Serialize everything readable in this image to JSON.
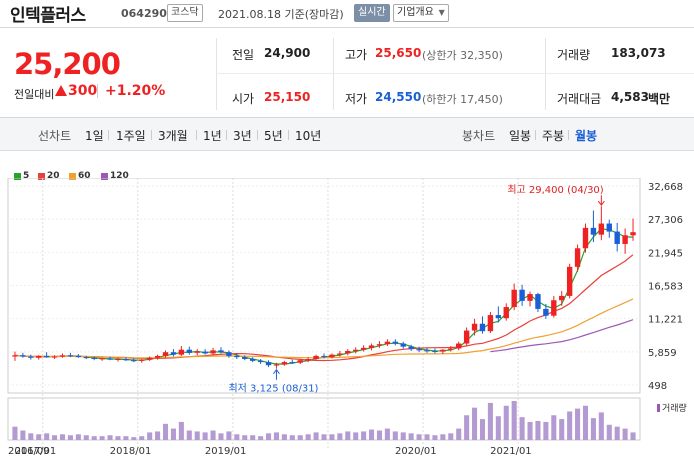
{
  "header": {
    "name": "인텍플러스",
    "code": "064290",
    "market": "코스닥",
    "date": "2021.08.18 기준(장마감)",
    "realtime": "실시간",
    "company_info": "기업개요"
  },
  "quote": {
    "price": "25,200",
    "change_label": "전일대비",
    "change_value": "300",
    "change_pct": "+1.20%",
    "prev_close_label": "전일",
    "prev_close": "24,900",
    "high_label": "고가",
    "high": "25,650",
    "upper_limit": "(상한가 32,350)",
    "volume_label": "거래량",
    "volume": "183,073",
    "open_label": "시가",
    "open": "25,150",
    "low_label": "저가",
    "low": "24,550",
    "lower_limit": "(하한가 17,450)",
    "amount_label": "거래대금",
    "amount": "4,583",
    "amount_unit": "백만"
  },
  "tabs": {
    "line_chart": "선차트",
    "periods": [
      "1일",
      "1주일",
      "3개월",
      "1년",
      "3년",
      "5년",
      "10년"
    ],
    "candle_chart": "봉차트",
    "candle_periods": [
      "일봉",
      "주봉",
      "월봉"
    ],
    "selected_candle": "월봉"
  },
  "legend": [
    {
      "label": "5",
      "color": "#2aa12a"
    },
    {
      "label": "20",
      "color": "#e8403a"
    },
    {
      "label": "60",
      "color": "#f0a030"
    },
    {
      "label": "120",
      "color": "#9b59b6"
    }
  ],
  "chart_data": {
    "type": "candlestick",
    "interval": "monthly",
    "y_ticks": [
      "32,668",
      "27,306",
      "21,945",
      "16,583",
      "11,221",
      "5,859",
      "498"
    ],
    "ylim": [
      498,
      32668
    ],
    "x_labels": [
      "2016/09",
      "2017/01",
      "2018/01",
      "2019/01",
      "2020/01",
      "2021/01"
    ],
    "max_annotation": "최고 29,400 (04/30)",
    "min_annotation": "최저 3,125 (08/31)",
    "volume_label": "거래량",
    "candles": [
      [
        5100,
        5900,
        4400,
        5300
      ],
      [
        5300,
        5700,
        4900,
        5100
      ],
      [
        5100,
        5400,
        4600,
        4900
      ],
      [
        4900,
        5300,
        4600,
        5200
      ],
      [
        5200,
        5800,
        4900,
        5000
      ],
      [
        5000,
        5300,
        4700,
        5100
      ],
      [
        5100,
        5600,
        4900,
        5300
      ],
      [
        5300,
        5700,
        5000,
        5200
      ],
      [
        5200,
        5500,
        4900,
        5000
      ],
      [
        5000,
        5200,
        4700,
        4900
      ],
      [
        4900,
        5100,
        4500,
        4700
      ],
      [
        4700,
        4900,
        4400,
        4800
      ],
      [
        4800,
        5100,
        4500,
        4600
      ],
      [
        4600,
        4900,
        4300,
        4700
      ],
      [
        4700,
        5000,
        4400,
        4500
      ],
      [
        4500,
        4800,
        4200,
        4400
      ],
      [
        4400,
        4700,
        4100,
        4600
      ],
      [
        4600,
        5100,
        4400,
        4900
      ],
      [
        4900,
        5400,
        4600,
        5200
      ],
      [
        5200,
        6100,
        4900,
        5800
      ],
      [
        5800,
        6300,
        5100,
        5400
      ],
      [
        5400,
        6800,
        5200,
        6200
      ],
      [
        6200,
        6700,
        5400,
        5700
      ],
      [
        5700,
        6300,
        5300,
        5900
      ],
      [
        5900,
        6300,
        5400,
        5600
      ],
      [
        5600,
        6500,
        5400,
        6100
      ],
      [
        6100,
        6600,
        5600,
        5800
      ],
      [
        5800,
        6100,
        4900,
        5200
      ],
      [
        5200,
        5600,
        4700,
        5000
      ],
      [
        5000,
        5300,
        4500,
        4700
      ],
      [
        4700,
        5000,
        4200,
        4400
      ],
      [
        4400,
        4700,
        3900,
        4200
      ],
      [
        4200,
        4500,
        3400,
        3700
      ],
      [
        3700,
        4100,
        3125,
        3800
      ],
      [
        3800,
        4400,
        3600,
        4200
      ],
      [
        4200,
        4600,
        3900,
        4100
      ],
      [
        4100,
        4700,
        3900,
        4500
      ],
      [
        4500,
        5000,
        4200,
        4700
      ],
      [
        4700,
        5400,
        4500,
        5200
      ],
      [
        5200,
        5600,
        4800,
        5000
      ],
      [
        5000,
        5600,
        4800,
        5400
      ],
      [
        5400,
        6000,
        5100,
        5600
      ],
      [
        5600,
        6300,
        5300,
        6000
      ],
      [
        6000,
        6600,
        5600,
        6200
      ],
      [
        6200,
        6900,
        5900,
        6500
      ],
      [
        6500,
        7200,
        6100,
        6900
      ],
      [
        6900,
        7600,
        6500,
        7100
      ],
      [
        7100,
        7900,
        6800,
        7500
      ],
      [
        7500,
        7900,
        6900,
        7200
      ],
      [
        7200,
        7500,
        6400,
        6700
      ],
      [
        6700,
        7000,
        6000,
        6300
      ],
      [
        6300,
        6700,
        5800,
        6100
      ],
      [
        6100,
        6500,
        5700,
        6000
      ],
      [
        6000,
        6400,
        5600,
        5900
      ],
      [
        5900,
        6300,
        5500,
        6200
      ],
      [
        6200,
        6800,
        5900,
        6400
      ],
      [
        6400,
        7500,
        6100,
        7200
      ],
      [
        7200,
        9800,
        6900,
        9300
      ],
      [
        9300,
        11200,
        8500,
        10400
      ],
      [
        10400,
        11600,
        8800,
        9200
      ],
      [
        9200,
        12300,
        8900,
        11800
      ],
      [
        11800,
        13200,
        10600,
        11300
      ],
      [
        11300,
        13700,
        10900,
        13100
      ],
      [
        13100,
        16900,
        12600,
        15900
      ],
      [
        15900,
        16700,
        13300,
        14100
      ],
      [
        14100,
        15600,
        13200,
        15200
      ],
      [
        15200,
        15400,
        12300,
        12800
      ],
      [
        12800,
        13600,
        11200,
        11700
      ],
      [
        11700,
        14900,
        11400,
        14200
      ],
      [
        14200,
        15700,
        13300,
        14900
      ],
      [
        14900,
        20100,
        14500,
        19600
      ],
      [
        19600,
        23200,
        18800,
        22600
      ],
      [
        22600,
        26600,
        21900,
        25900
      ],
      [
        25900,
        28700,
        23600,
        24800
      ],
      [
        24800,
        29400,
        23900,
        26600
      ],
      [
        26600,
        27200,
        24300,
        25300
      ],
      [
        25300,
        26700,
        22100,
        23300
      ],
      [
        23300,
        25800,
        21700,
        24700
      ],
      [
        24700,
        27400,
        23800,
        25200
      ]
    ],
    "volumes": [
      1.4,
      1.0,
      0.7,
      0.6,
      0.7,
      0.5,
      0.6,
      0.5,
      0.6,
      0.5,
      0.4,
      0.4,
      0.5,
      0.4,
      0.4,
      0.3,
      0.4,
      0.8,
      0.9,
      1.7,
      1.2,
      1.9,
      1.0,
      0.9,
      0.8,
      1.0,
      0.7,
      0.9,
      0.6,
      0.5,
      0.5,
      0.4,
      0.7,
      0.8,
      0.6,
      0.5,
      0.5,
      0.6,
      0.8,
      0.6,
      0.6,
      0.7,
      0.9,
      0.8,
      0.9,
      1.1,
      1.0,
      1.2,
      0.9,
      0.8,
      0.7,
      0.6,
      0.6,
      0.5,
      0.6,
      0.7,
      1.2,
      2.6,
      3.4,
      2.2,
      3.9,
      2.5,
      3.6,
      4.1,
      2.4,
      1.9,
      2.0,
      1.9,
      2.6,
      2.2,
      3.0,
      3.3,
      3.6,
      2.3,
      2.9,
      1.6,
      1.4,
      1.2,
      0.8
    ]
  }
}
